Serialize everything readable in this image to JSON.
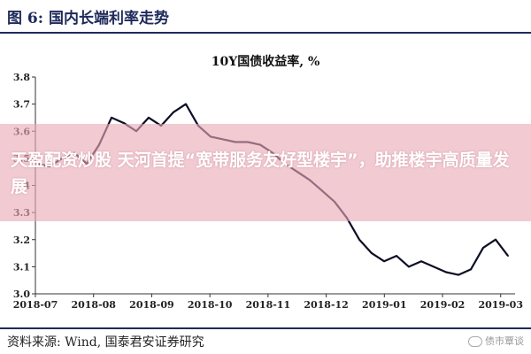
{
  "figure_title": "图 6:   国内长端利率走势",
  "overlay_text": "天盈配资炒股 天河首提“宽带服务友好型楼宇”，助推楼宇高质量发展",
  "source": "资料来源:   Wind,  国泰君安证券研究",
  "watermark": "债市覃谈",
  "colors": {
    "line": "#0d0d26",
    "title": "#1e2a5a",
    "overlay": "#e8aab6"
  },
  "chart_data": {
    "type": "line",
    "title": "10Y国债收益率, %",
    "xlabel": "",
    "ylabel": "",
    "ylim": [
      3.0,
      3.8
    ],
    "yticks": [
      3.0,
      3.1,
      3.2,
      3.3,
      3.4,
      3.5,
      3.6,
      3.7,
      3.8
    ],
    "x_tick_labels": [
      "2018-07",
      "2018-08",
      "2018-09",
      "2018-10",
      "2018-11",
      "2018-12",
      "2019-01",
      "2019-02",
      "2019-03"
    ],
    "grid": false,
    "legend": "none",
    "series": [
      {
        "x": [
          "2018-07-02",
          "2018-07-09",
          "2018-07-16",
          "2018-07-23",
          "2018-07-30",
          "2018-08-06",
          "2018-08-13",
          "2018-08-20",
          "2018-08-27",
          "2018-09-03",
          "2018-09-10",
          "2018-09-17",
          "2018-09-24",
          "2018-10-01",
          "2018-10-08",
          "2018-10-15",
          "2018-10-22",
          "2018-10-29",
          "2018-11-05",
          "2018-11-12",
          "2018-11-19",
          "2018-11-26",
          "2018-12-03",
          "2018-12-10",
          "2018-12-17",
          "2018-12-24",
          "2018-12-31",
          "2019-01-07",
          "2019-01-14",
          "2019-01-21",
          "2019-01-28",
          "2019-02-04",
          "2019-02-11",
          "2019-02-18",
          "2019-02-25",
          "2019-03-04",
          "2019-03-11",
          "2019-03-18",
          "2019-03-25"
        ],
        "values": [
          3.48,
          3.47,
          3.5,
          3.52,
          3.48,
          3.55,
          3.65,
          3.63,
          3.6,
          3.65,
          3.62,
          3.67,
          3.7,
          3.62,
          3.58,
          3.57,
          3.56,
          3.56,
          3.55,
          3.52,
          3.48,
          3.45,
          3.42,
          3.38,
          3.34,
          3.28,
          3.2,
          3.15,
          3.12,
          3.14,
          3.1,
          3.12,
          3.1,
          3.08,
          3.07,
          3.09,
          3.17,
          3.2,
          3.14
        ]
      }
    ]
  }
}
